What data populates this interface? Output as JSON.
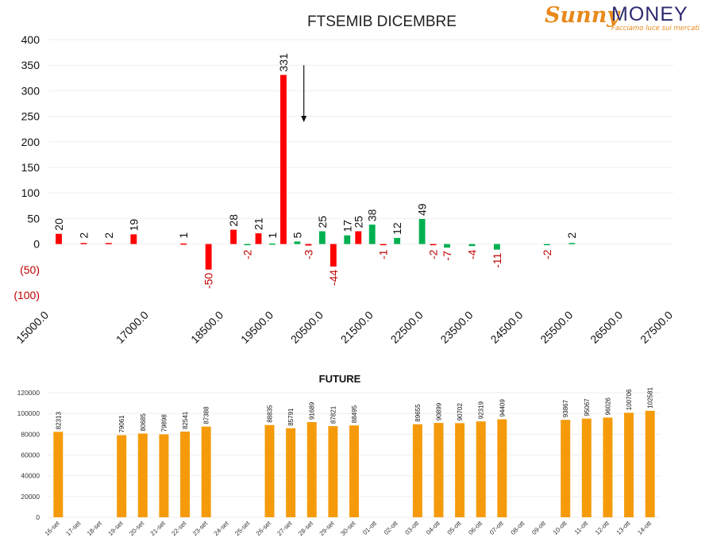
{
  "logo": {
    "part1": "Sunny",
    "part2": "MONEY",
    "tagline": "Facciamo luce sui mercati"
  },
  "colors": {
    "positive_red": "#ff0000",
    "positive_green": "#00b050",
    "negative_label": "#c00000",
    "future_bar": "#f59b0b",
    "grid": "#eeeeee"
  },
  "chart_data": [
    {
      "type": "bar",
      "title": "FTSEMIB DICEMBRE",
      "xlabel": "",
      "ylabel": "",
      "ylim": [
        -100,
        400
      ],
      "yticks": [
        {
          "value": 400,
          "label": "400"
        },
        {
          "value": 350,
          "label": "350"
        },
        {
          "value": 300,
          "label": "300"
        },
        {
          "value": 250,
          "label": "250"
        },
        {
          "value": 200,
          "label": "200"
        },
        {
          "value": 150,
          "label": "150"
        },
        {
          "value": 100,
          "label": "100"
        },
        {
          "value": 50,
          "label": "50"
        },
        {
          "value": 0,
          "label": "0"
        },
        {
          "value": -50,
          "label": "(50)"
        },
        {
          "value": -100,
          "label": "(100)"
        }
      ],
      "xlim": [
        15000,
        27500
      ],
      "xticks": [
        {
          "value": 15000,
          "label": "15000.0"
        },
        {
          "value": 17000,
          "label": "17000.0"
        },
        {
          "value": 18500,
          "label": "18500.0"
        },
        {
          "value": 19500,
          "label": "19500.0"
        },
        {
          "value": 20500,
          "label": "20500.0"
        },
        {
          "value": 21500,
          "label": "21500.0"
        },
        {
          "value": 22500,
          "label": "22500.0"
        },
        {
          "value": 23500,
          "label": "23500.0"
        },
        {
          "value": 24500,
          "label": "24500.0"
        },
        {
          "value": 25500,
          "label": "25500.0"
        },
        {
          "value": 26500,
          "label": "26500.0"
        },
        {
          "value": 27500,
          "label": "27500.0"
        }
      ],
      "series": [
        {
          "color": "#ff0000",
          "points": [
            {
              "x": 15000,
              "value": 20,
              "label": "20"
            },
            {
              "x": 15500,
              "value": 2,
              "label": "2"
            },
            {
              "x": 16000,
              "value": 2,
              "label": "2"
            },
            {
              "x": 16500,
              "value": 19,
              "label": "19"
            },
            {
              "x": 17500,
              "value": 1,
              "label": "1"
            },
            {
              "x": 18000,
              "value": -50,
              "label": "-50"
            },
            {
              "x": 18500,
              "value": 28,
              "label": "28"
            },
            {
              "x": 19000,
              "value": 21,
              "label": "21"
            },
            {
              "x": 19500,
              "value": 331,
              "label": "331"
            },
            {
              "x": 20000,
              "value": -3,
              "label": "-3"
            },
            {
              "x": 20500,
              "value": -44,
              "label": "-44"
            },
            {
              "x": 21000,
              "value": 25,
              "label": "25"
            },
            {
              "x": 21500,
              "value": -1,
              "label": "-1"
            },
            {
              "x": 22500,
              "value": -2,
              "label": "-2"
            }
          ]
        },
        {
          "color": "#00b050",
          "points": [
            {
              "x": 19000,
              "value": -2,
              "label": "-2"
            },
            {
              "x": 19500,
              "value": 1,
              "label": "1"
            },
            {
              "x": 20000,
              "value": 5,
              "label": "5"
            },
            {
              "x": 20500,
              "value": 25,
              "label": "25"
            },
            {
              "x": 21000,
              "value": 17,
              "label": "17"
            },
            {
              "x": 21500,
              "value": 38,
              "label": "38"
            },
            {
              "x": 22000,
              "value": 12,
              "label": "12"
            },
            {
              "x": 22500,
              "value": 49,
              "label": "49"
            },
            {
              "x": 23000,
              "value": -7,
              "label": "-7"
            },
            {
              "x": 23500,
              "value": -4,
              "label": "-4"
            },
            {
              "x": 24000,
              "value": -11,
              "label": "-11"
            },
            {
              "x": 25000,
              "value": -2,
              "label": "-2"
            },
            {
              "x": 25500,
              "value": 2,
              "label": "2"
            }
          ]
        }
      ],
      "annotation": {
        "type": "arrow-down",
        "x": 20100,
        "y_from": 350,
        "y_to": 240
      }
    },
    {
      "type": "bar",
      "title": "FUTURE",
      "xlabel": "",
      "ylabel": "",
      "ylim": [
        0,
        120000
      ],
      "yticks": [
        0,
        20000,
        40000,
        60000,
        80000,
        100000,
        120000
      ],
      "color": "#f59b0b",
      "categories": [
        "16-set",
        "17-set",
        "18-set",
        "19-set",
        "20-set",
        "21-set",
        "22-set",
        "23-set",
        "24-set",
        "25-set",
        "26-set",
        "27-set",
        "28-set",
        "29-set",
        "30-set",
        "01-ott",
        "02-ott",
        "03-ott",
        "04-ott",
        "05-ott",
        "06-ott",
        "07-ott",
        "08-ott",
        "09-ott",
        "10-ott",
        "11-ott",
        "12-ott",
        "13-ott",
        "14-ott"
      ],
      "values": [
        82313,
        null,
        null,
        79061,
        80685,
        79898,
        82541,
        87388,
        null,
        null,
        88835,
        85791,
        91689,
        87821,
        88495,
        null,
        null,
        89655,
        90899,
        90702,
        92319,
        94409,
        null,
        null,
        93867,
        95067,
        96026,
        100706,
        102581
      ]
    }
  ]
}
